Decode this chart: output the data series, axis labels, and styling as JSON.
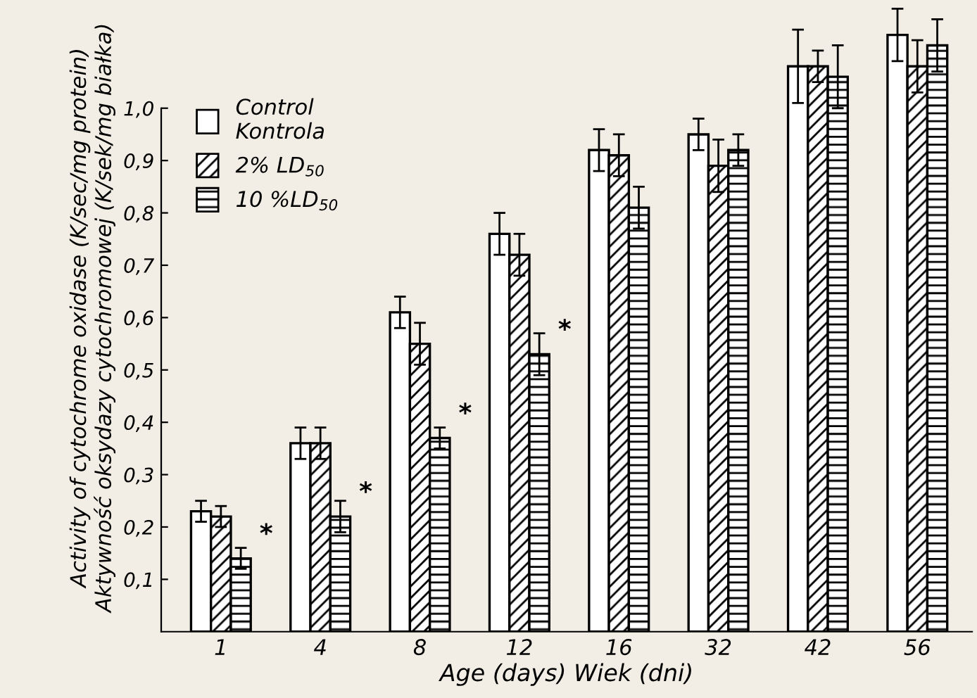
{
  "chart_data": {
    "type": "bar",
    "xlabel": "Age (days) Wiek (dni)",
    "ylabel": "Activity of cytochrome oxidase (K/sec/mg protein)\nAktywność oksydazy cytochromowej (K/sek/mg białka)",
    "categories": [
      "1",
      "4",
      "8",
      "12",
      "16",
      "32",
      "42",
      "56"
    ],
    "series": [
      {
        "name": "Control\nKontrola",
        "color": "#ffffff",
        "values": [
          0.23,
          0.36,
          0.61,
          0.76,
          0.92,
          0.95,
          1.08,
          1.14
        ],
        "errors": [
          0.02,
          0.03,
          0.03,
          0.04,
          0.04,
          0.03,
          0.07,
          0.05
        ]
      },
      {
        "name": "2% LD$_{50}$",
        "color": "#000000",
        "values": [
          0.22,
          0.36,
          0.55,
          0.72,
          0.91,
          0.89,
          1.08,
          1.08
        ],
        "errors": [
          0.02,
          0.03,
          0.04,
          0.04,
          0.04,
          0.05,
          0.03,
          0.05
        ]
      },
      {
        "name": "10 %LD$_{50}$",
        "color": "#000000",
        "values": [
          0.14,
          0.22,
          0.37,
          0.53,
          0.81,
          0.92,
          1.06,
          1.12
        ],
        "errors": [
          0.02,
          0.03,
          0.02,
          0.04,
          0.04,
          0.03,
          0.06,
          0.05
        ]
      }
    ],
    "ylim": [
      0,
      1.2
    ],
    "yticks": [
      {
        "value": 0.1,
        "label": "0,1"
      },
      {
        "value": 0.2,
        "label": "0,2"
      },
      {
        "value": 0.3,
        "label": "0,3"
      },
      {
        "value": 0.4,
        "label": "0,4"
      },
      {
        "value": 0.5,
        "label": "0,5"
      },
      {
        "value": 0.6,
        "label": "0,6"
      },
      {
        "value": 0.7,
        "label": "0,7"
      },
      {
        "value": 0.8,
        "label": "0,8"
      },
      {
        "value": 0.9,
        "label": "0,9"
      },
      {
        "value": 1.0,
        "label": "1,0"
      }
    ],
    "annotations": [
      "*",
      "*",
      "*",
      "*"
    ],
    "legend": "top left",
    "grid": false
  }
}
